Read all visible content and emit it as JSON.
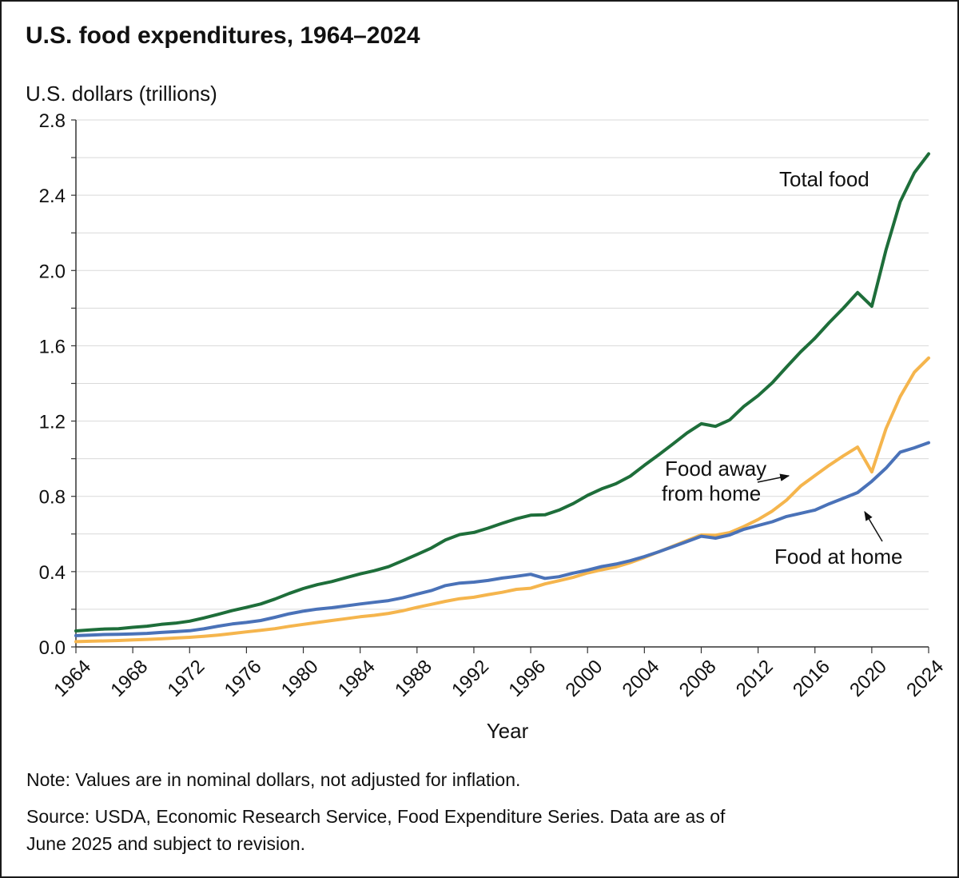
{
  "chart_data": {
    "type": "line",
    "title": "U.S. food expenditures, 1964–2024",
    "ylabel": "U.S. dollars (trillions)",
    "xlabel": "Year",
    "ylim": [
      0,
      2.8
    ],
    "xlim": [
      1964,
      2024
    ],
    "yticks": [
      "0.0",
      "0.4",
      "0.8",
      "1.2",
      "1.6",
      "2.0",
      "2.4",
      "2.8"
    ],
    "xticks": [
      "1964",
      "1968",
      "1972",
      "1976",
      "1980",
      "1984",
      "1988",
      "1992",
      "1996",
      "2000",
      "2004",
      "2008",
      "2012",
      "2016",
      "2020",
      "2024"
    ],
    "x": [
      1964,
      1965,
      1966,
      1967,
      1968,
      1969,
      1970,
      1971,
      1972,
      1973,
      1974,
      1975,
      1976,
      1977,
      1978,
      1979,
      1980,
      1981,
      1982,
      1983,
      1984,
      1985,
      1986,
      1987,
      1988,
      1989,
      1990,
      1991,
      1992,
      1993,
      1994,
      1995,
      1996,
      1997,
      1998,
      1999,
      2000,
      2001,
      2002,
      2003,
      2004,
      2005,
      2006,
      2007,
      2008,
      2009,
      2010,
      2011,
      2012,
      2013,
      2014,
      2015,
      2016,
      2017,
      2018,
      2019,
      2020,
      2021,
      2022,
      2023,
      2024
    ],
    "series": [
      {
        "name": "Total food",
        "color": "#1e6e3a",
        "values": [
          0.085,
          0.09,
          0.095,
          0.097,
          0.104,
          0.11,
          0.12,
          0.126,
          0.137,
          0.154,
          0.173,
          0.193,
          0.21,
          0.228,
          0.254,
          0.284,
          0.31,
          0.331,
          0.347,
          0.368,
          0.388,
          0.405,
          0.426,
          0.458,
          0.491,
          0.525,
          0.568,
          0.597,
          0.608,
          0.631,
          0.657,
          0.681,
          0.7,
          0.702,
          0.727,
          0.762,
          0.805,
          0.84,
          0.867,
          0.907,
          0.965,
          1.02,
          1.078,
          1.137,
          1.186,
          1.172,
          1.206,
          1.278,
          1.335,
          1.404,
          1.487,
          1.568,
          1.64,
          1.723,
          1.8,
          1.883,
          1.81,
          2.11,
          2.365,
          2.52,
          2.62
        ]
      },
      {
        "name": "Food away from home",
        "color": "#f5b54d",
        "values": [
          0.028,
          0.03,
          0.032,
          0.034,
          0.037,
          0.04,
          0.043,
          0.047,
          0.051,
          0.056,
          0.063,
          0.071,
          0.08,
          0.088,
          0.097,
          0.109,
          0.12,
          0.13,
          0.14,
          0.15,
          0.16,
          0.168,
          0.178,
          0.192,
          0.21,
          0.226,
          0.242,
          0.256,
          0.264,
          0.278,
          0.29,
          0.306,
          0.312,
          0.335,
          0.352,
          0.37,
          0.393,
          0.41,
          0.425,
          0.448,
          0.475,
          0.505,
          0.535,
          0.565,
          0.595,
          0.593,
          0.607,
          0.64,
          0.677,
          0.722,
          0.78,
          0.855,
          0.91,
          0.965,
          1.015,
          1.062,
          0.93,
          1.16,
          1.33,
          1.46,
          1.535
        ]
      },
      {
        "name": "Food at home",
        "color": "#4a72b8",
        "values": [
          0.06,
          0.063,
          0.066,
          0.067,
          0.069,
          0.072,
          0.077,
          0.081,
          0.086,
          0.096,
          0.11,
          0.122,
          0.13,
          0.14,
          0.157,
          0.176,
          0.19,
          0.201,
          0.208,
          0.218,
          0.228,
          0.237,
          0.246,
          0.261,
          0.281,
          0.299,
          0.326,
          0.339,
          0.344,
          0.353,
          0.366,
          0.375,
          0.386,
          0.364,
          0.373,
          0.392,
          0.408,
          0.427,
          0.44,
          0.458,
          0.48,
          0.505,
          0.532,
          0.56,
          0.588,
          0.578,
          0.595,
          0.625,
          0.645,
          0.665,
          0.693,
          0.71,
          0.727,
          0.76,
          0.79,
          0.82,
          0.88,
          0.95,
          1.035,
          1.058,
          1.085
        ]
      }
    ],
    "annotations": {
      "total_label": "Total food",
      "away_label_line1": "Food away",
      "away_label_line2": "from home",
      "home_label": "Food at home"
    }
  },
  "notes": {
    "note": "Note: Values are in nominal dollars, not adjusted for inflation.",
    "source_line1": "Source: USDA, Economic Research Service, Food Expenditure Series. Data are as of",
    "source_line2": "June 2025 and subject to revision."
  }
}
